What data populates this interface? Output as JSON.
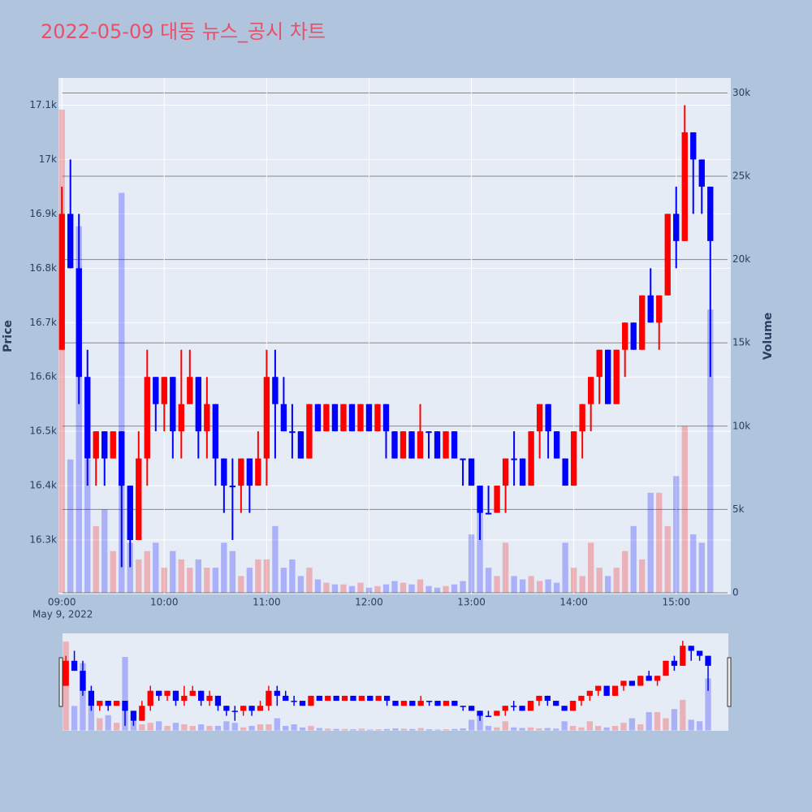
{
  "chart_data": {
    "type": "candlestick",
    "title": "2022-05-09 대동 뉴스_공시 차트",
    "x_date_label": "May 9, 2022",
    "yaxis_title": "Price",
    "y2axis_title": "Volume",
    "increasing_color": "#ff0000",
    "decreasing_color": "#0000ff",
    "x": [
      "2022-05-09 09:00",
      "2022-05-09 09:05",
      "2022-05-09 09:10",
      "2022-05-09 09:15",
      "2022-05-09 09:20",
      "2022-05-09 09:25",
      "2022-05-09 09:30",
      "2022-05-09 09:35",
      "2022-05-09 09:40",
      "2022-05-09 09:45",
      "2022-05-09 09:50",
      "2022-05-09 09:55",
      "2022-05-09 10:00",
      "2022-05-09 10:05",
      "2022-05-09 10:10",
      "2022-05-09 10:15",
      "2022-05-09 10:20",
      "2022-05-09 10:25",
      "2022-05-09 10:30",
      "2022-05-09 10:35",
      "2022-05-09 10:40",
      "2022-05-09 10:45",
      "2022-05-09 10:50",
      "2022-05-09 10:55",
      "2022-05-09 11:00",
      "2022-05-09 11:05",
      "2022-05-09 11:10",
      "2022-05-09 11:15",
      "2022-05-09 11:20",
      "2022-05-09 11:25",
      "2022-05-09 11:30",
      "2022-05-09 11:35",
      "2022-05-09 11:40",
      "2022-05-09 11:45",
      "2022-05-09 11:50",
      "2022-05-09 11:55",
      "2022-05-09 12:00",
      "2022-05-09 12:05",
      "2022-05-09 12:10",
      "2022-05-09 12:15",
      "2022-05-09 12:20",
      "2022-05-09 12:25",
      "2022-05-09 12:30",
      "2022-05-09 12:35",
      "2022-05-09 12:40",
      "2022-05-09 12:45",
      "2022-05-09 12:50",
      "2022-05-09 12:55",
      "2022-05-09 13:00",
      "2022-05-09 13:05",
      "2022-05-09 13:10",
      "2022-05-09 13:15",
      "2022-05-09 13:20",
      "2022-05-09 13:25",
      "2022-05-09 13:30",
      "2022-05-09 13:35",
      "2022-05-09 13:40",
      "2022-05-09 13:45",
      "2022-05-09 13:50",
      "2022-05-09 13:55",
      "2022-05-09 14:00",
      "2022-05-09 14:05",
      "2022-05-09 14:10",
      "2022-05-09 14:15",
      "2022-05-09 14:20",
      "2022-05-09 14:25",
      "2022-05-09 14:30",
      "2022-05-09 14:35",
      "2022-05-09 14:40",
      "2022-05-09 14:45",
      "2022-05-09 14:50",
      "2022-05-09 14:55",
      "2022-05-09 15:00",
      "2022-05-09 15:05",
      "2022-05-09 15:10",
      "2022-05-09 15:15",
      "2022-05-09 15:20"
    ],
    "open": [
      16650,
      16900,
      16800,
      16600,
      16450,
      16500,
      16450,
      16500,
      16400,
      16300,
      16450,
      16600,
      16550,
      16600,
      16500,
      16550,
      16600,
      16500,
      16550,
      16450,
      16400,
      16400,
      16450,
      16400,
      16450,
      16600,
      16550,
      16500,
      16500,
      16450,
      16550,
      16500,
      16550,
      16500,
      16550,
      16500,
      16550,
      16500,
      16550,
      16500,
      16450,
      16500,
      16450,
      16500,
      16500,
      16450,
      16500,
      16450,
      16450,
      16400,
      16350,
      16350,
      16400,
      16450,
      16450,
      16400,
      16500,
      16550,
      16500,
      16450,
      16400,
      16500,
      16550,
      16600,
      16650,
      16550,
      16650,
      16700,
      16650,
      16750,
      16700,
      16750,
      16900,
      16850,
      17050,
      17000,
      16950
    ],
    "high": [
      16950,
      17000,
      16900,
      16650,
      16500,
      16500,
      16500,
      16500,
      16400,
      16500,
      16650,
      16600,
      16600,
      16600,
      16650,
      16650,
      16600,
      16600,
      16550,
      16450,
      16450,
      16450,
      16450,
      16500,
      16650,
      16650,
      16600,
      16550,
      16500,
      16550,
      16550,
      16550,
      16550,
      16550,
      16550,
      16550,
      16550,
      16550,
      16550,
      16500,
      16500,
      16500,
      16550,
      16500,
      16500,
      16500,
      16500,
      16450,
      16450,
      16400,
      16400,
      16400,
      16450,
      16500,
      16450,
      16500,
      16550,
      16550,
      16500,
      16450,
      16500,
      16550,
      16600,
      16650,
      16650,
      16650,
      16700,
      16700,
      16750,
      16800,
      16750,
      16900,
      16950,
      17100,
      17050,
      17000,
      16950
    ],
    "low": [
      16650,
      16800,
      16550,
      16400,
      16400,
      16400,
      16450,
      16250,
      16250,
      16300,
      16400,
      16500,
      16500,
      16450,
      16450,
      16550,
      16450,
      16450,
      16400,
      16350,
      16300,
      16350,
      16350,
      16400,
      16400,
      16450,
      16500,
      16450,
      16450,
      16450,
      16500,
      16500,
      16500,
      16500,
      16500,
      16500,
      16500,
      16500,
      16450,
      16450,
      16450,
      16450,
      16450,
      16450,
      16450,
      16450,
      16450,
      16400,
      16400,
      16300,
      16350,
      16350,
      16350,
      16400,
      16400,
      16400,
      16450,
      16450,
      16450,
      16400,
      16400,
      16450,
      16500,
      16550,
      16550,
      16550,
      16600,
      16650,
      16650,
      16700,
      16650,
      16750,
      16800,
      16850,
      16900,
      16900,
      16600
    ],
    "close": [
      16900,
      16800,
      16600,
      16450,
      16500,
      16450,
      16500,
      16400,
      16300,
      16450,
      16600,
      16550,
      16600,
      16500,
      16550,
      16600,
      16500,
      16550,
      16450,
      16400,
      16400,
      16450,
      16400,
      16450,
      16600,
      16550,
      16500,
      16500,
      16450,
      16550,
      16500,
      16550,
      16500,
      16550,
      16500,
      16550,
      16500,
      16550,
      16500,
      16450,
      16500,
      16450,
      16500,
      16500,
      16450,
      16500,
      16450,
      16450,
      16400,
      16350,
      16350,
      16400,
      16450,
      16450,
      16400,
      16500,
      16550,
      16500,
      16450,
      16400,
      16500,
      16550,
      16600,
      16650,
      16550,
      16650,
      16700,
      16650,
      16750,
      16700,
      16750,
      16900,
      16850,
      17050,
      17000,
      16950,
      16850
    ],
    "volume": [
      29000,
      8000,
      22000,
      8000,
      4000,
      5000,
      2500,
      24000,
      3000,
      2000,
      2500,
      3000,
      1500,
      2500,
      2000,
      1500,
      2000,
      1500,
      1500,
      3000,
      2500,
      1000,
      1500,
      2000,
      2000,
      4000,
      1500,
      2000,
      1000,
      1500,
      800,
      600,
      500,
      500,
      400,
      600,
      300,
      400,
      500,
      700,
      600,
      500,
      800,
      400,
      300,
      400,
      500,
      700,
      3500,
      5000,
      1500,
      1000,
      3000,
      1000,
      800,
      1000,
      700,
      800,
      600,
      3000,
      1500,
      1000,
      3000,
      1500,
      1000,
      1500,
      2500,
      4000,
      2000,
      6000,
      6000,
      4000,
      7000,
      10000,
      3500,
      3000,
      17000
    ],
    "xlim": [
      "2022-05-09 08:58",
      "2022-05-09 15:32"
    ],
    "xticks": [
      {
        "value": "2022-05-09 09:00",
        "label": "09:00"
      },
      {
        "value": "2022-05-09 10:00",
        "label": "10:00"
      },
      {
        "value": "2022-05-09 11:00",
        "label": "11:00"
      },
      {
        "value": "2022-05-09 12:00",
        "label": "12:00"
      },
      {
        "value": "2022-05-09 13:00",
        "label": "13:00"
      },
      {
        "value": "2022-05-09 14:00",
        "label": "14:00"
      },
      {
        "value": "2022-05-09 15:00",
        "label": "15:00"
      }
    ],
    "ylim": [
      16200,
      17150
    ],
    "yticks": [
      {
        "value": 16300,
        "label": "16.3k"
      },
      {
        "value": 16400,
        "label": "16.4k"
      },
      {
        "value": 16500,
        "label": "16.5k"
      },
      {
        "value": 16600,
        "label": "16.6k"
      },
      {
        "value": 16700,
        "label": "16.7k"
      },
      {
        "value": 16800,
        "label": "16.8k"
      },
      {
        "value": 16900,
        "label": "16.9k"
      },
      {
        "value": 17000,
        "label": "17k"
      },
      {
        "value": 17100,
        "label": "17.1k"
      }
    ],
    "y2lim": [
      -100,
      30900
    ],
    "y2ticks": [
      0,
      {
        "value": 5000,
        "label": "5k"
      },
      {
        "value": 10000,
        "label": "10k"
      },
      {
        "value": 15000,
        "label": "15k"
      },
      {
        "value": 20000,
        "label": "20k"
      },
      {
        "value": 25000,
        "label": "25k"
      },
      {
        "value": 30000,
        "label": "30k"
      }
    ],
    "rangeslider": true
  }
}
